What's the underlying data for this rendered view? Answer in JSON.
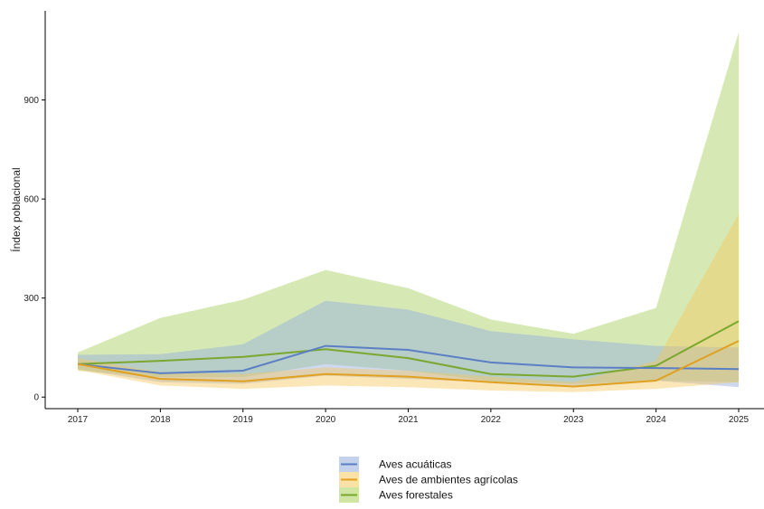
{
  "chart_data": {
    "type": "line",
    "title": "",
    "xlabel": "",
    "ylabel": "Índex poblacional",
    "x": [
      2017,
      2018,
      2019,
      2020,
      2021,
      2022,
      2023,
      2024,
      2025
    ],
    "xticks": [
      "2017",
      "2018",
      "2019",
      "2020",
      "2021",
      "2022",
      "2023",
      "2024",
      "2025"
    ],
    "yticks": [
      0,
      300,
      600,
      900
    ],
    "ylim": [
      -35,
      1170
    ],
    "grid": false,
    "legend_position": "bottom",
    "series": [
      {
        "name": "Aves forestales",
        "color": "#7aa82e",
        "fill": "#a5cf5a",
        "values": [
          100,
          110,
          122,
          145,
          118,
          70,
          62,
          95,
          230
        ],
        "upper": [
          135,
          240,
          295,
          385,
          330,
          235,
          192,
          270,
          1105
        ],
        "lower": [
          80,
          60,
          60,
          100,
          80,
          48,
          40,
          50,
          45
        ]
      },
      {
        "name": "Aves acuáticas",
        "color": "#5b7fc4",
        "fill": "#93abdd",
        "values": [
          100,
          72,
          80,
          155,
          143,
          105,
          90,
          88,
          85
        ],
        "upper": [
          128,
          130,
          160,
          292,
          265,
          200,
          175,
          155,
          150
        ],
        "lower": [
          85,
          45,
          40,
          65,
          55,
          45,
          30,
          50,
          30
        ]
      },
      {
        "name": "Aves de ambientes agrícolas",
        "color": "#e0a020",
        "fill": "#f5c860",
        "values": [
          100,
          55,
          48,
          70,
          62,
          45,
          32,
          50,
          170
        ],
        "upper": [
          118,
          75,
          70,
          90,
          80,
          62,
          45,
          110,
          555
        ],
        "lower": [
          82,
          35,
          25,
          35,
          30,
          20,
          15,
          25,
          45
        ]
      }
    ]
  },
  "legend_order": [
    1,
    2,
    0
  ]
}
